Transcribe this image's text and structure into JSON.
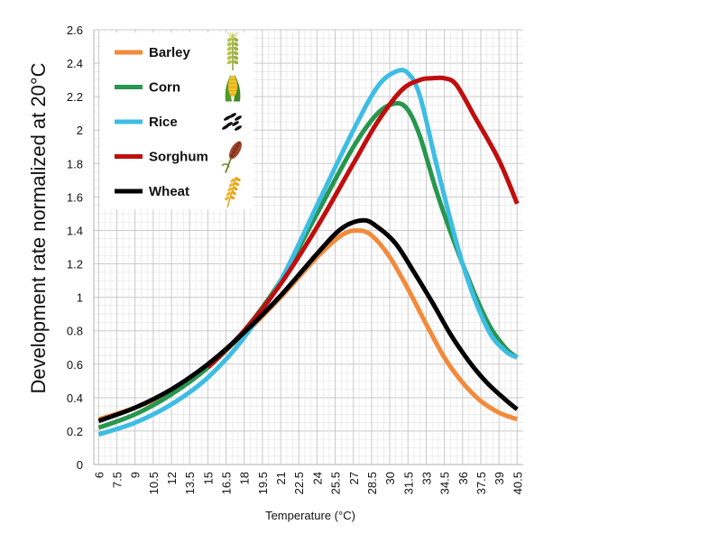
{
  "chart_data": {
    "type": "line",
    "xlabel": "Temperature (°C)",
    "ylabel": "Development rate normalized at 20°C",
    "xlim": [
      6,
      40.5
    ],
    "ylim": [
      0,
      2.6
    ],
    "y_ticks": [
      "0",
      "0.2",
      "0.4",
      "0.6",
      "0.8",
      "1",
      "1.2",
      "1.4",
      "1.6",
      "1.8",
      "2",
      "2.2",
      "2.4",
      "2.6"
    ],
    "x_ticks": [
      "6",
      "7.5",
      "9",
      "10.5",
      "12",
      "13.5",
      "15",
      "16.5",
      "18",
      "19.5",
      "21",
      "22.5",
      "24",
      "25.5",
      "27",
      "28.5",
      "30",
      "31.5",
      "33",
      "34.5",
      "36",
      "37.5",
      "39",
      "40.5"
    ],
    "grid": true,
    "legend_position": "top-left",
    "series": [
      {
        "name": "Barley",
        "color": "#f28a3a",
        "icon": "barley-icon",
        "x": [
          6,
          9,
          12,
          15,
          18,
          21,
          24,
          26,
          27.3,
          28.5,
          30,
          31.5,
          33,
          34.5,
          36,
          37.5,
          39,
          40.5
        ],
        "y": [
          0.27,
          0.34,
          0.44,
          0.6,
          0.78,
          1.0,
          1.24,
          1.37,
          1.4,
          1.37,
          1.24,
          1.05,
          0.84,
          0.64,
          0.49,
          0.38,
          0.31,
          0.27
        ]
      },
      {
        "name": "Corn",
        "color": "#27964f",
        "icon": "corn-icon",
        "x": [
          6,
          9,
          12,
          15,
          18,
          21,
          24,
          27,
          29,
          30.5,
          31.5,
          32.5,
          34,
          36,
          38,
          39.5,
          40.5
        ],
        "y": [
          0.22,
          0.3,
          0.42,
          0.58,
          0.8,
          1.1,
          1.5,
          1.9,
          2.1,
          2.16,
          2.12,
          1.96,
          1.6,
          1.2,
          0.86,
          0.7,
          0.64
        ]
      },
      {
        "name": "Rice",
        "color": "#3dbde4",
        "icon": "rice-icon",
        "x": [
          6,
          9,
          12,
          15,
          18,
          21,
          24,
          27,
          29,
          30.5,
          31.5,
          32.5,
          34,
          36,
          38,
          39.5,
          40.5
        ],
        "y": [
          0.18,
          0.25,
          0.36,
          0.52,
          0.76,
          1.1,
          1.55,
          2.0,
          2.26,
          2.35,
          2.34,
          2.2,
          1.75,
          1.2,
          0.82,
          0.68,
          0.64
        ]
      },
      {
        "name": "Sorghum",
        "color": "#c00e0e",
        "icon": "sorghum-icon",
        "x": [
          15,
          18,
          21,
          24,
          27,
          29,
          31,
          32.5,
          33.5,
          34.5,
          35.5,
          37,
          39,
          40.5
        ],
        "y": [
          0.58,
          0.8,
          1.08,
          1.42,
          1.8,
          2.05,
          2.24,
          2.3,
          2.31,
          2.31,
          2.27,
          2.08,
          1.82,
          1.56
        ]
      },
      {
        "name": "Wheat",
        "color": "#000000",
        "icon": "wheat-icon",
        "x": [
          6,
          9,
          12,
          15,
          18,
          21,
          24,
          26,
          27.8,
          29,
          30.5,
          32,
          33.5,
          35,
          36.5,
          38,
          39.5,
          40.5
        ],
        "y": [
          0.26,
          0.34,
          0.45,
          0.6,
          0.79,
          1.01,
          1.26,
          1.41,
          1.46,
          1.42,
          1.32,
          1.15,
          0.97,
          0.78,
          0.62,
          0.49,
          0.39,
          0.33
        ]
      }
    ]
  }
}
